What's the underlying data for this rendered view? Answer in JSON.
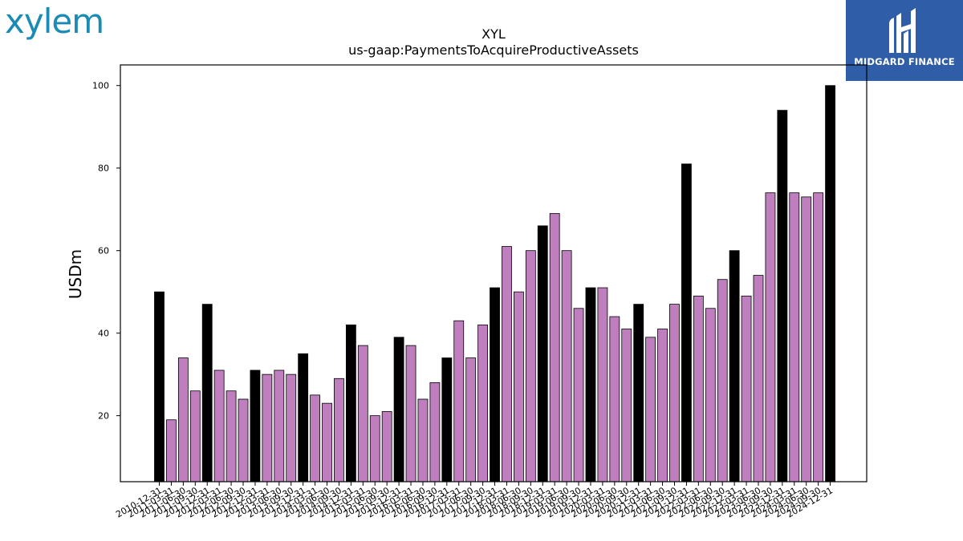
{
  "logos": {
    "left_text": "xylem",
    "right_text": "MIDGARD FINANCE"
  },
  "colors": {
    "highlight_bar": "#000000",
    "regular_bar": "#bf7fbf",
    "bar_edge": "#000000",
    "logo_left": "#1a8bb5",
    "logo_right_bg": "#2f5da8"
  },
  "chart_data": {
    "type": "bar",
    "title": "XYL",
    "subtitle": "us-gaap:PaymentsToAcquireProductiveAssets",
    "xlabel": "",
    "ylabel": "USDm",
    "ylim": [
      4,
      105
    ],
    "yticks": [
      20,
      40,
      60,
      80,
      100
    ],
    "grid": false,
    "legend": "none",
    "categories": [
      "2010-12-31",
      "2011-03-31",
      "2011-06-30",
      "2011-09-30",
      "2011-12-31",
      "2012-03-31",
      "2012-06-30",
      "2012-09-30",
      "2012-12-31",
      "2013-03-31",
      "2013-06-30",
      "2013-09-30",
      "2013-12-31",
      "2014-03-31",
      "2014-06-30",
      "2014-09-30",
      "2014-12-31",
      "2015-03-31",
      "2015-06-30",
      "2015-09-30",
      "2015-12-31",
      "2016-03-31",
      "2016-06-30",
      "2016-09-30",
      "2016-12-31",
      "2017-03-31",
      "2017-06-30",
      "2017-09-30",
      "2017-12-31",
      "2018-03-31",
      "2018-06-30",
      "2018-09-30",
      "2018-12-31",
      "2019-03-31",
      "2019-06-30",
      "2019-09-30",
      "2019-12-31",
      "2020-03-31",
      "2020-06-30",
      "2020-09-30",
      "2020-12-31",
      "2021-03-31",
      "2021-06-30",
      "2021-09-30",
      "2021-12-31",
      "2022-03-31",
      "2022-06-30",
      "2022-09-30",
      "2022-12-31",
      "2023-03-31",
      "2023-06-30",
      "2023-09-30",
      "2023-12-31",
      "2024-03-31",
      "2024-06-30",
      "2024-09-30",
      "2024-12-31"
    ],
    "xtick_labels": [
      "2010-12-31",
      "2011-03-31",
      "2011-06-30",
      "2011-09-30",
      "2011-12-31",
      "2012-03-31",
      "2012-06-30",
      "2012-09-30",
      "2012-12-31",
      "2013-03-31",
      "2013-06-30",
      "2013-09-30",
      "2013-12-31",
      "2014-03-31",
      "2014-06-30",
      "2014-09-30",
      "2014-12-31",
      "2015-03-31",
      "2015-06-30",
      "2015-09-30",
      "2015-12-31",
      "2016-03-31",
      "2016-06-30",
      "2016-09-30",
      "2016-12-31",
      "2017-03-31",
      "2017-06-30",
      "2017-09-30",
      "2017-12-31",
      "2018-03-31",
      "2018-06-30",
      "2018-09-30",
      "2018-12-31",
      "2019-03-31",
      "2019-06-30",
      "2019-09-30",
      "2019-12-31",
      "2020-03-31",
      "2020-06-30",
      "2020-09-30",
      "2020-12-31",
      "2021-03-31",
      "2021-06-30",
      "2021-09-30",
      "2021-12-31",
      "2022-03-31",
      "2022-06-30",
      "2022-09-30",
      "2022-12-31",
      "2023-03-31",
      "2023-06-30",
      "2023-09-30",
      "2023-12-31",
      "2024-03-31",
      "2024-06-30",
      "2024-09-30",
      "2024-12-31"
    ],
    "values": [
      50,
      19,
      34,
      26,
      47,
      31,
      26,
      24,
      31,
      30,
      31,
      30,
      35,
      25,
      23,
      29,
      42,
      37,
      20,
      21,
      39,
      37,
      24,
      28,
      34,
      43,
      34,
      42,
      51,
      61,
      50,
      60,
      66,
      69,
      60,
      46,
      51,
      51,
      44,
      41,
      47,
      39,
      41,
      47,
      81,
      49,
      46,
      53,
      60,
      49,
      54,
      74,
      94,
      74,
      73,
      74,
      100
    ],
    "highlighted": [
      true,
      false,
      false,
      false,
      true,
      false,
      false,
      false,
      true,
      false,
      false,
      false,
      true,
      false,
      false,
      false,
      true,
      false,
      false,
      false,
      true,
      false,
      false,
      false,
      true,
      false,
      false,
      false,
      true,
      false,
      false,
      false,
      true,
      false,
      false,
      false,
      true,
      false,
      false,
      false,
      true,
      false,
      false,
      false,
      true,
      false,
      false,
      false,
      true,
      false,
      false,
      false,
      true,
      false,
      false,
      false,
      true
    ]
  }
}
